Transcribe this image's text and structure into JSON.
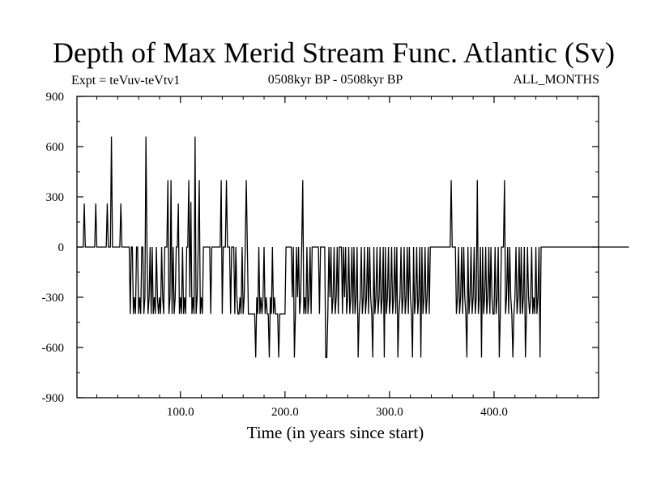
{
  "chart_data": {
    "type": "line",
    "title": "Depth of Max Merid Stream Func. Atlantic (Sv)",
    "expt_label": "Expt = teVuv-teVtv1",
    "period_label": "0508kyr BP - 0508kyr BP",
    "months_label": "ALL_MONTHS",
    "xlabel": "Time (in years since start)",
    "ylabel": "",
    "xlim": [
      1,
      500
    ],
    "ylim": [
      -900,
      900
    ],
    "x_ticks": [
      100,
      200,
      300,
      400
    ],
    "x_tick_labels": [
      "100.0",
      "200.0",
      "300.0",
      "400.0"
    ],
    "y_ticks": [
      -900,
      -600,
      -300,
      0,
      300,
      600,
      900
    ],
    "y_tick_labels": [
      "-900",
      "-600",
      "-300",
      "0",
      "300",
      "600",
      "900"
    ],
    "grid": false,
    "series": [
      {
        "values": [
          0,
          0,
          0,
          0,
          0,
          0,
          0,
          260,
          0,
          0,
          0,
          0,
          0,
          0,
          0,
          0,
          0,
          0,
          260,
          0,
          0,
          0,
          0,
          0,
          0,
          0,
          0,
          0,
          0,
          260,
          0,
          0,
          0,
          660,
          0,
          0,
          0,
          0,
          0,
          0,
          0,
          0,
          260,
          0,
          0,
          0,
          0,
          0,
          0,
          0,
          0,
          -400,
          0,
          0,
          -400,
          -300,
          -400,
          0,
          0,
          -400,
          -300,
          -400,
          0,
          0,
          -400,
          -300,
          660,
          0,
          -400,
          -300,
          0,
          -400,
          0,
          -400,
          -300,
          -400,
          0,
          -300,
          -400,
          -300,
          -400,
          0,
          -300,
          -400,
          0,
          0,
          0,
          400,
          -400,
          -300,
          400,
          -400,
          0,
          -400,
          -300,
          0,
          0,
          260,
          -400,
          -300,
          -400,
          0,
          -400,
          -300,
          -400,
          0,
          0,
          400,
          -300,
          270,
          -400,
          -300,
          -400,
          660,
          -400,
          -300,
          0,
          400,
          -400,
          -300,
          -400,
          0,
          0,
          0,
          0,
          0,
          0,
          0,
          -400,
          0,
          0,
          0,
          0,
          0,
          0,
          0,
          0,
          0,
          400,
          -400,
          0,
          0,
          0,
          400,
          0,
          0,
          0,
          -400,
          0,
          0,
          0,
          -400,
          0,
          -300,
          -400,
          -400,
          -300,
          -400,
          0,
          -400,
          -300,
          0,
          400,
          0,
          -400,
          -400,
          -400,
          -400,
          -400,
          -400,
          -400,
          -660,
          -300,
          -400,
          0,
          -400,
          -300,
          -400,
          -300,
          0,
          -400,
          -300,
          -400,
          -400,
          -660,
          -300,
          -400,
          0,
          -400,
          -300,
          -400,
          -400,
          -400,
          -660,
          -400,
          -400,
          -400,
          -400,
          -400,
          -400,
          0,
          0,
          0,
          0,
          0,
          0,
          -300,
          0,
          -660,
          -400,
          0,
          -300,
          0,
          -400,
          -300,
          0,
          400,
          -400,
          -300,
          -400,
          0,
          -400,
          -300,
          0,
          -400,
          0,
          0,
          0,
          0,
          0,
          0,
          0,
          -400,
          0,
          0,
          0,
          0,
          0,
          -660,
          -660,
          -400,
          0,
          -300,
          0,
          -400,
          -300,
          0,
          -400,
          -300,
          0,
          -400,
          0,
          0,
          0,
          -400,
          0,
          -300,
          0,
          -400,
          -300,
          0,
          -400,
          -300,
          0,
          -400,
          0,
          -400,
          -300,
          0,
          -660,
          -400,
          -300,
          0,
          -400,
          -300,
          0,
          -400,
          -300,
          0,
          -400,
          0,
          -300,
          -400,
          -660,
          0,
          -400,
          -300,
          0,
          -400,
          -300,
          0,
          -400,
          -300,
          0,
          -660,
          0,
          -400,
          -300,
          0,
          -400,
          -300,
          0,
          -400,
          -300,
          0,
          -400,
          0,
          -660,
          -400,
          -300,
          0,
          -400,
          -300,
          0,
          -400,
          -300,
          0,
          -400,
          0,
          -300,
          -400,
          -660,
          0,
          -400,
          -300,
          0,
          -400,
          -300,
          0,
          -660,
          0,
          -400,
          -300,
          0,
          -400,
          -300,
          0,
          -400,
          0,
          0,
          0,
          0,
          0,
          0,
          0,
          0,
          0,
          0,
          0,
          0,
          0,
          0,
          0,
          0,
          0,
          0,
          0,
          0,
          400,
          0,
          0,
          0,
          0,
          -400,
          -300,
          0,
          -400,
          -300,
          0,
          -400,
          0,
          -300,
          -400,
          -660,
          0,
          -400,
          -300,
          0,
          -400,
          -300,
          0,
          -400,
          -300,
          400,
          -400,
          -300,
          0,
          -660,
          0,
          -400,
          -300,
          0,
          -400,
          -300,
          0,
          -400,
          0,
          -300,
          -400,
          -400,
          0,
          -400,
          -300,
          0,
          -660,
          -400,
          0,
          0,
          0,
          400,
          -400,
          -300,
          0,
          -400,
          0,
          -300,
          -400,
          -660,
          -400,
          -300,
          0,
          -400,
          -300,
          0,
          -400,
          0,
          -400,
          -300,
          0,
          -660,
          -400,
          0,
          -300,
          -400,
          -300,
          0,
          -400,
          -300,
          -400,
          0,
          -400,
          -300,
          0,
          -660,
          0,
          0,
          0,
          0,
          0,
          0,
          0,
          0,
          0,
          0,
          0,
          0,
          0,
          0,
          0,
          0,
          0,
          0,
          0,
          0,
          0,
          0,
          0,
          0,
          0,
          0,
          0,
          0,
          0,
          0,
          0,
          0,
          0,
          0,
          0,
          0,
          0,
          0,
          0,
          0,
          0,
          0,
          0,
          0,
          0,
          0,
          0,
          0,
          0,
          0,
          0,
          0,
          0,
          0,
          0,
          0,
          0,
          0,
          0,
          0,
          0,
          0,
          0,
          0,
          0,
          0,
          0,
          0,
          0,
          0,
          0,
          0,
          0,
          0,
          0,
          0,
          0,
          0,
          0,
          0,
          0,
          0,
          0,
          0,
          0
        ]
      }
    ]
  }
}
